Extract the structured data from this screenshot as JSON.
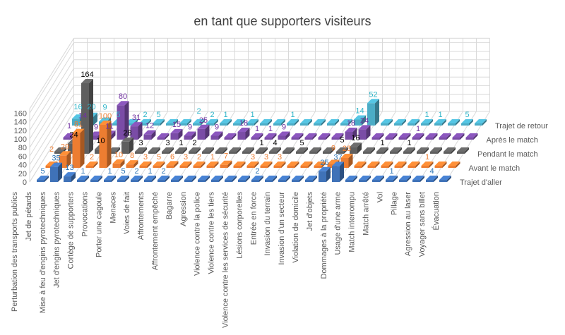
{
  "chart_data": {
    "type": "bar",
    "variant": "3d-column",
    "title": "en tant que supporters visiteurs",
    "categories": [
      "Perturbation des transports publics",
      "Jet de pétards",
      "Mise à feu d'engins pyrotechniques",
      "Jet d'engins pyrotechniques",
      "Cortège de supporters",
      "Provocations",
      "Porter une cagoule",
      "Menaces",
      "Voies de fait",
      "Affrontements",
      "Affrontement empêché",
      "Bagarre",
      "Agression",
      "Violence contre la police",
      "Violence contre les tiers",
      "Violence contre les services de sécurité",
      "Lésions corporelles",
      "Entrée en force",
      "Invasion du terrain",
      "Invasion d'un secteur",
      "Violation de domicile",
      "Jet d'objets",
      "Dommages à la propriété",
      "Usage d'une arme",
      "Match interrompu",
      "Match arrêté",
      "Vol",
      "Pillage",
      "Agression au laser",
      "Voyager sans billet",
      "Évacuation"
    ],
    "series": [
      {
        "name": "Trajet d'aller",
        "color": "#3f72b8",
        "label_color": "#2e75b6",
        "values": [
          5,
          35,
          13,
          1,
          0,
          1,
          5,
          2,
          1,
          2,
          0,
          0,
          0,
          0,
          0,
          0,
          2,
          0,
          0,
          0,
          0,
          25,
          37,
          0,
          0,
          0,
          1,
          0,
          0,
          4,
          0
        ]
      },
      {
        "name": "Avant le match",
        "color": "#ed7d31",
        "label_color": "#ed7d31",
        "values": [
          2,
          29,
          81,
          2,
          100,
          10,
          8,
          3,
          5,
          6,
          3,
          2,
          1,
          7,
          0,
          3,
          3,
          3,
          0,
          0,
          0,
          9,
          23,
          0,
          0,
          0,
          0,
          0,
          1,
          0,
          0
        ]
      },
      {
        "name": "Pendant le match",
        "color": "#5f5f5f",
        "label_color": "#000000",
        "values": [
          0,
          24,
          164,
          10,
          0,
          28,
          3,
          0,
          3,
          1,
          2,
          0,
          0,
          0,
          0,
          1,
          4,
          0,
          5,
          0,
          0,
          5,
          16,
          0,
          1,
          0,
          1,
          0,
          0,
          0,
          0
        ]
      },
      {
        "name": "Après le match",
        "color": "#7a4ca6",
        "label_color": "#7030a0",
        "values": [
          1,
          14,
          9,
          11,
          80,
          31,
          12,
          0,
          15,
          9,
          25,
          9,
          0,
          18,
          1,
          1,
          9,
          0,
          0,
          0,
          0,
          18,
          24,
          0,
          0,
          0,
          1,
          0,
          0,
          0,
          0
        ]
      },
      {
        "name": "Trajet de retour",
        "color": "#4bacc6",
        "label_color": "#2fb5c9",
        "values": [
          16,
          20,
          9,
          5,
          0,
          2,
          5,
          0,
          0,
          2,
          2,
          1,
          0,
          1,
          0,
          0,
          1,
          0,
          0,
          0,
          0,
          14,
          52,
          0,
          0,
          0,
          1,
          1,
          0,
          5,
          0
        ]
      }
    ],
    "yticks": [
      0,
      20,
      40,
      60,
      80,
      100,
      120,
      140,
      160
    ],
    "ylim": [
      0,
      170
    ],
    "grid": true,
    "legend": "right (series labels at end of each row)"
  }
}
